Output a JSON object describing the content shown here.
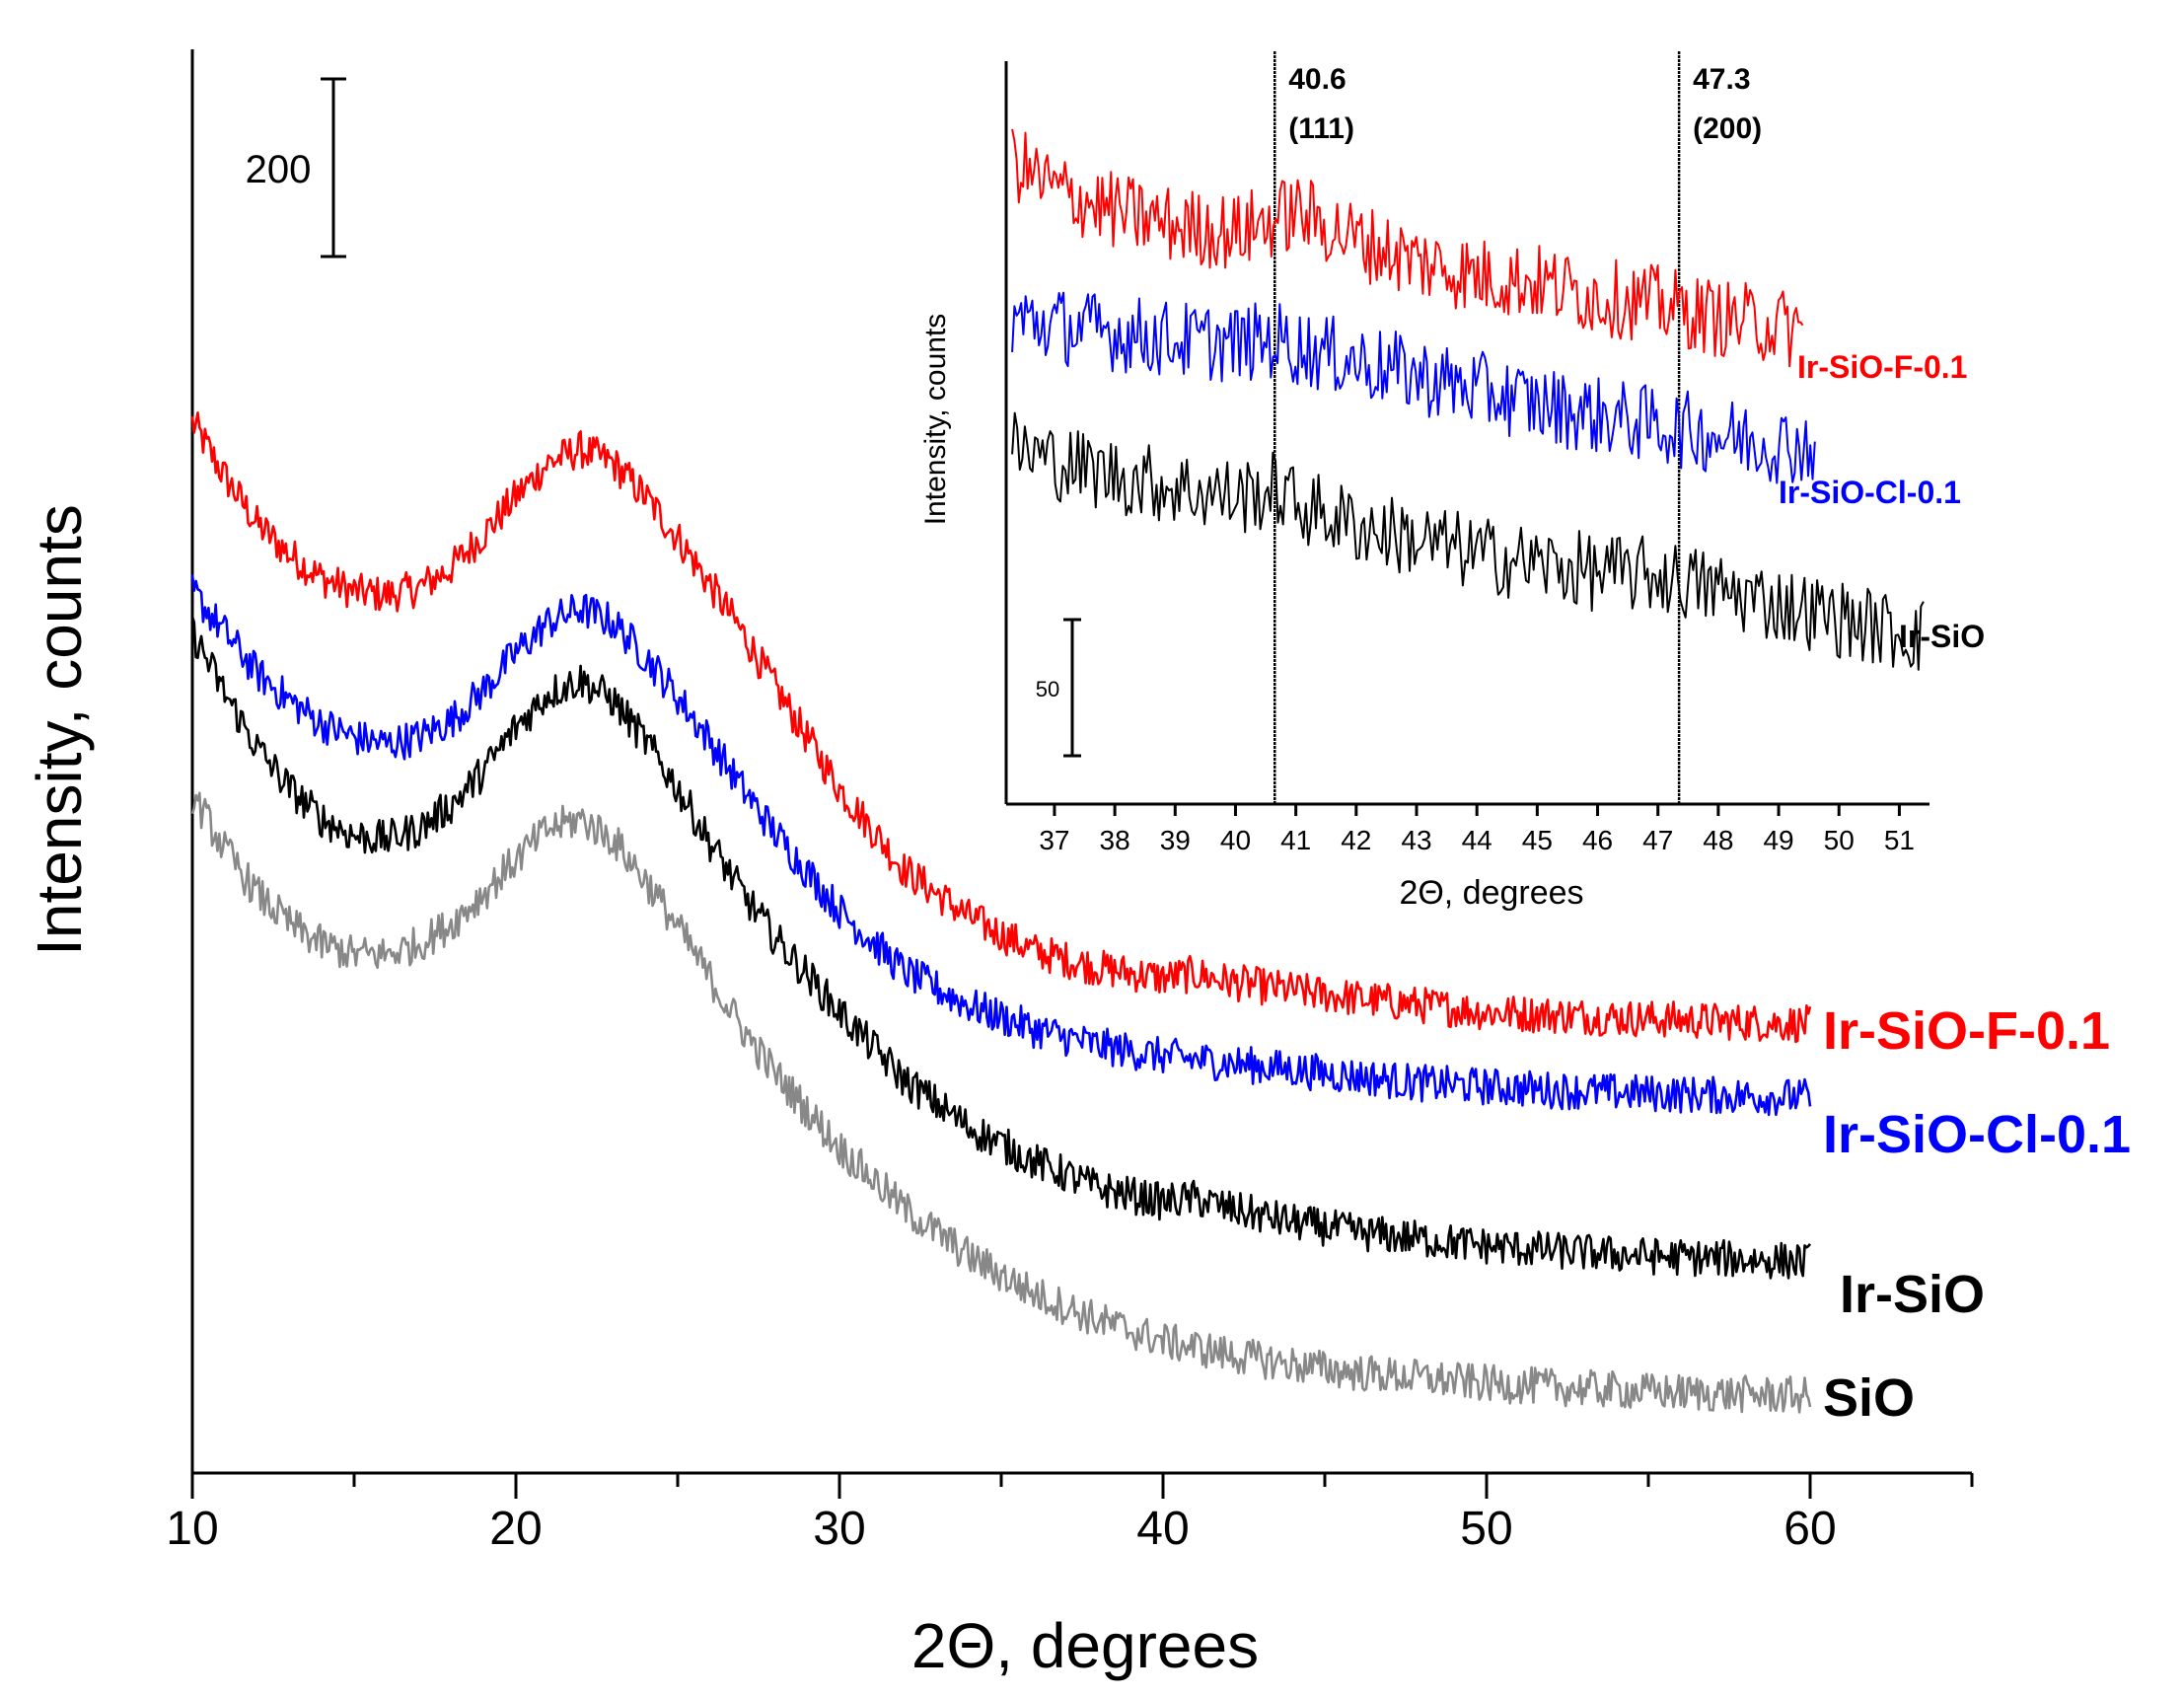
{
  "chart_data": [
    {
      "type": "line",
      "xlabel": "2Θ, degrees",
      "ylabel": "Intensity, counts",
      "xlim": [
        10,
        65
      ],
      "ylim": [
        0,
        2100
      ],
      "xticks": [
        10,
        20,
        30,
        40,
        50,
        60
      ],
      "xtick_labels": [
        "10",
        "20",
        "30",
        "40",
        "50",
        "60"
      ],
      "minor_xticks": [
        15,
        25,
        35,
        45,
        55,
        65
      ],
      "scale_bar": {
        "label": "200",
        "value": 200
      },
      "series": [
        {
          "name": "Ir-SiO-F-0.1",
          "color": "#ff0000",
          "points": [
            [
              10,
              1550
            ],
            [
              11,
              1470
            ],
            [
              12,
              1400
            ],
            [
              13,
              1355
            ],
            [
              14,
              1320
            ],
            [
              15,
              1300
            ],
            [
              16,
              1295
            ],
            [
              17,
              1305
            ],
            [
              18,
              1335
            ],
            [
              19,
              1385
            ],
            [
              20,
              1440
            ],
            [
              21,
              1490
            ],
            [
              22,
              1510
            ],
            [
              23,
              1490
            ],
            [
              24,
              1440
            ],
            [
              25,
              1380
            ],
            [
              26,
              1310
            ],
            [
              27,
              1240
            ],
            [
              28,
              1160
            ],
            [
              30,
              1010
            ],
            [
              32,
              890
            ],
            [
              34,
              820
            ],
            [
              36,
              770
            ],
            [
              38,
              745
            ],
            [
              40,
              730
            ],
            [
              41,
              736
            ],
            [
              42,
              725
            ],
            [
              44,
              712
            ],
            [
              46,
              700
            ],
            [
              48,
              690
            ],
            [
              50,
              680
            ],
            [
              52,
              676
            ],
            [
              55,
              670
            ],
            [
              58,
              665
            ],
            [
              60,
              662
            ]
          ]
        },
        {
          "name": "Ir-SiO-Cl-0.1",
          "color": "#0000ff",
          "points": [
            [
              10,
              1300
            ],
            [
              11,
              1240
            ],
            [
              12,
              1180
            ],
            [
              13,
              1140
            ],
            [
              14,
              1105
            ],
            [
              15,
              1085
            ],
            [
              16,
              1075
            ],
            [
              17,
              1085
            ],
            [
              18,
              1110
            ],
            [
              19,
              1155
            ],
            [
              20,
              1210
            ],
            [
              21,
              1255
            ],
            [
              22,
              1275
            ],
            [
              23,
              1255
            ],
            [
              24,
              1205
            ],
            [
              25,
              1145
            ],
            [
              26,
              1080
            ],
            [
              27,
              1010
            ],
            [
              28,
              945
            ],
            [
              30,
              830
            ],
            [
              32,
              740
            ],
            [
              34,
              690
            ],
            [
              36,
              655
            ],
            [
              38,
              630
            ],
            [
              40,
              615
            ],
            [
              41,
              610
            ],
            [
              42,
              605
            ],
            [
              44,
              595
            ],
            [
              46,
              585
            ],
            [
              48,
              575
            ],
            [
              50,
              570
            ],
            [
              52,
              565
            ],
            [
              55,
              560
            ],
            [
              58,
              556
            ],
            [
              60,
              554
            ]
          ]
        },
        {
          "name": "Ir-SiO",
          "color": "#000000",
          "points": [
            [
              10,
              1240
            ],
            [
              11,
              1150
            ],
            [
              12,
              1070
            ],
            [
              13,
              1010
            ],
            [
              14,
              965
            ],
            [
              15,
              940
            ],
            [
              16,
              935
            ],
            [
              17,
              950
            ],
            [
              18,
              985
            ],
            [
              19,
              1035
            ],
            [
              20,
              1100
            ],
            [
              21,
              1150
            ],
            [
              22,
              1170
            ],
            [
              23,
              1140
            ],
            [
              24,
              1080
            ],
            [
              25,
              1010
            ],
            [
              26,
              930
            ],
            [
              27,
              855
            ],
            [
              28,
              790
            ],
            [
              30,
              680
            ],
            [
              32,
              580
            ],
            [
              34,
              510
            ],
            [
              36,
              460
            ],
            [
              38,
              420
            ],
            [
              40,
              400
            ],
            [
              41,
              405
            ],
            [
              42,
              390
            ],
            [
              44,
              370
            ],
            [
              46,
              355
            ],
            [
              48,
              345
            ],
            [
              50,
              335
            ],
            [
              52,
              328
            ],
            [
              55,
              320
            ],
            [
              58,
              315
            ],
            [
              60,
              312
            ]
          ]
        },
        {
          "name": "SiO",
          "color": "#888888",
          "points": [
            [
              10,
              1000
            ],
            [
              11,
              920
            ],
            [
              12,
              855
            ],
            [
              13,
              810
            ],
            [
              14,
              780
            ],
            [
              15,
              765
            ],
            [
              16,
              765
            ],
            [
              17,
              780
            ],
            [
              18,
              810
            ],
            [
              19,
              855
            ],
            [
              20,
              905
            ],
            [
              21,
              950
            ],
            [
              22,
              965
            ],
            [
              23,
              935
            ],
            [
              24,
              875
            ],
            [
              25,
              805
            ],
            [
              26,
              730
            ],
            [
              27,
              655
            ],
            [
              28,
              590
            ],
            [
              30,
              480
            ],
            [
              32,
              390
            ],
            [
              34,
              320
            ],
            [
              36,
              265
            ],
            [
              38,
              225
            ],
            [
              40,
              195
            ],
            [
              42,
              175
            ],
            [
              44,
              160
            ],
            [
              46,
              148
            ],
            [
              48,
              140
            ],
            [
              50,
              132
            ],
            [
              52,
              127
            ],
            [
              55,
              120
            ],
            [
              58,
              116
            ],
            [
              60,
              114
            ]
          ]
        }
      ]
    },
    {
      "type": "line",
      "inset": true,
      "xlabel": "2Θ, degrees",
      "ylabel": "Intensity, counts",
      "xlim": [
        36.2,
        51.5
      ],
      "ylim": [
        0,
        520
      ],
      "xticks": [
        37,
        38,
        39,
        40,
        41,
        42,
        43,
        44,
        45,
        46,
        47,
        48,
        49,
        50,
        51
      ],
      "xtick_labels": [
        "37",
        "38",
        "39",
        "40",
        "41",
        "42",
        "43",
        "44",
        "45",
        "46",
        "47",
        "48",
        "49",
        "50",
        "51"
      ],
      "scale_bar": {
        "label": "50",
        "value": 50
      },
      "vlines": [
        {
          "x": 40.65,
          "label_top": "40.6",
          "label_bottom": "(111)"
        },
        {
          "x": 47.35,
          "label_top": "47.3",
          "label_bottom": "(200)"
        }
      ],
      "series": [
        {
          "name": "Ir-SiO-F-0.1",
          "color": "#ff0000",
          "points": [
            [
              36.3,
              450
            ],
            [
              37,
              430
            ],
            [
              38,
              415
            ],
            [
              39,
              405
            ],
            [
              40,
              400
            ],
            [
              40.7,
              410
            ],
            [
              41,
              415
            ],
            [
              42,
              395
            ],
            [
              43,
              380
            ],
            [
              44,
              370
            ],
            [
              45,
              365
            ],
            [
              46,
              355
            ],
            [
              47,
              350
            ],
            [
              48,
              340
            ],
            [
              49,
              335
            ],
            [
              49.4,
              330
            ]
          ]
        },
        {
          "name": "Ir-SiO-Cl-0.1",
          "color": "#0000ff",
          "points": [
            [
              36.3,
              340
            ],
            [
              37,
              335
            ],
            [
              38,
              330
            ],
            [
              39,
              325
            ],
            [
              40,
              322
            ],
            [
              40.7,
              325
            ],
            [
              41,
              320
            ],
            [
              42,
              310
            ],
            [
              43,
              300
            ],
            [
              44,
              290
            ],
            [
              45,
              280
            ],
            [
              46,
              272
            ],
            [
              47,
              265
            ],
            [
              48,
              258
            ],
            [
              49,
              252
            ],
            [
              49.6,
              250
            ]
          ]
        },
        {
          "name": "Ir-SiO",
          "color": "#000000",
          "points": [
            [
              36.3,
              250
            ],
            [
              37,
              240
            ],
            [
              38,
              230
            ],
            [
              39,
              222
            ],
            [
              40,
              215
            ],
            [
              40.7,
              220
            ],
            [
              41,
              210
            ],
            [
              42,
              195
            ],
            [
              43,
              185
            ],
            [
              44,
              175
            ],
            [
              45,
              168
            ],
            [
              46,
              162
            ],
            [
              47,
              160
            ],
            [
              48,
              150
            ],
            [
              49,
              140
            ],
            [
              50,
              130
            ],
            [
              51,
              120
            ],
            [
              51.4,
              118
            ]
          ]
        }
      ]
    }
  ]
}
